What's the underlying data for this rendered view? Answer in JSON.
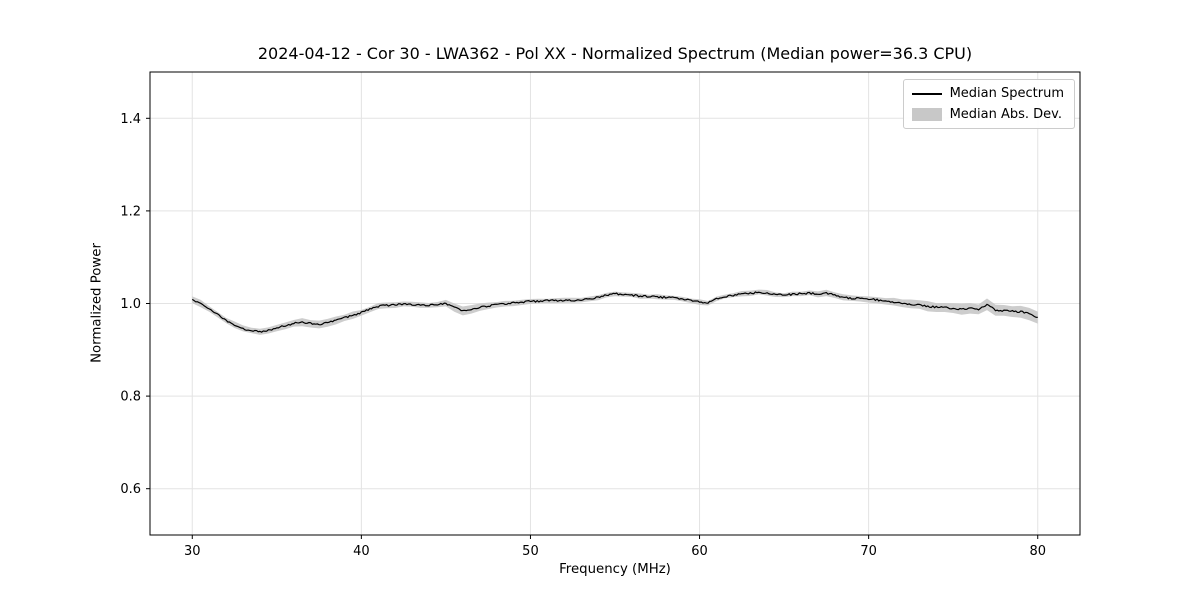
{
  "chart_data": {
    "type": "line",
    "title": "2024-04-12 - Cor 30 - LWA362 - Pol XX - Normalized Spectrum (Median power=36.3 CPU)",
    "xlabel": "Frequency (MHz)",
    "ylabel": "Normalized Power",
    "xlim": [
      27.5,
      82.5
    ],
    "ylim": [
      0.5,
      1.5
    ],
    "xticks": [
      30,
      40,
      50,
      60,
      70,
      80
    ],
    "yticks": [
      0.6,
      0.8,
      1.0,
      1.2,
      1.4
    ],
    "xtick_labels": [
      "30",
      "40",
      "50",
      "60",
      "70",
      "80"
    ],
    "ytick_labels": [
      "0.6",
      "0.8",
      "1.0",
      "1.2",
      "1.4"
    ],
    "grid": true,
    "noise_amplitude": 0.002,
    "colors": {
      "line": "#000000",
      "band": "#c8c8c8",
      "grid": "#e3e3e3",
      "frame": "#000000",
      "background": "#ffffff"
    },
    "legend": {
      "position": "upper right",
      "entries": [
        {
          "label": "Median Spectrum",
          "type": "line",
          "color": "#000000"
        },
        {
          "label": "Median Abs. Dev.",
          "type": "patch",
          "color": "#c8c8c8"
        }
      ]
    },
    "series": [
      {
        "name": "Median Spectrum",
        "x": [
          30,
          30.5,
          31,
          31.5,
          32,
          32.5,
          33,
          33.5,
          34,
          34.5,
          35,
          35.5,
          36,
          36.5,
          37,
          37.5,
          38,
          38.5,
          39,
          39.5,
          40,
          40.5,
          41,
          41.5,
          42,
          42.5,
          43,
          43.5,
          44,
          44.5,
          45,
          45.5,
          46,
          46.5,
          47,
          47.5,
          48,
          48.5,
          49,
          49.5,
          50,
          50.5,
          51,
          51.5,
          52,
          52.5,
          53,
          53.5,
          54,
          54.5,
          55,
          55.5,
          56,
          56.5,
          57,
          57.5,
          58,
          58.5,
          59,
          59.5,
          60,
          60.5,
          61,
          61.5,
          62,
          62.5,
          63,
          63.5,
          64,
          64.5,
          65,
          65.5,
          66,
          66.5,
          67,
          67.5,
          68,
          68.5,
          69,
          69.5,
          70,
          70.5,
          71,
          71.5,
          72,
          72.5,
          73,
          73.5,
          74,
          74.5,
          75,
          75.5,
          76,
          76.5,
          77,
          77.5,
          78,
          78.5,
          79,
          79.5,
          80
        ],
        "y": [
          1.008,
          1.0,
          0.988,
          0.976,
          0.964,
          0.954,
          0.946,
          0.941,
          0.939,
          0.942,
          0.947,
          0.952,
          0.957,
          0.96,
          0.957,
          0.955,
          0.958,
          0.963,
          0.969,
          0.975,
          0.98,
          0.988,
          0.994,
          0.996,
          0.997,
          0.999,
          0.998,
          0.996,
          0.996,
          0.997,
          1.0,
          0.992,
          0.984,
          0.988,
          0.992,
          0.995,
          0.997,
          0.999,
          1.001,
          1.003,
          1.005,
          1.005,
          1.006,
          1.006,
          1.007,
          1.007,
          1.008,
          1.01,
          1.013,
          1.018,
          1.021,
          1.02,
          1.018,
          1.016,
          1.015,
          1.014,
          1.013,
          1.012,
          1.01,
          1.006,
          1.003,
          1.001,
          1.01,
          1.015,
          1.018,
          1.021,
          1.022,
          1.024,
          1.023,
          1.02,
          1.018,
          1.02,
          1.021,
          1.022,
          1.02,
          1.023,
          1.018,
          1.013,
          1.011,
          1.011,
          1.009,
          1.008,
          1.005,
          1.003,
          1.001,
          0.999,
          0.997,
          0.994,
          0.992,
          0.991,
          0.99,
          0.988,
          0.99,
          0.987,
          0.998,
          0.985,
          0.985,
          0.983,
          0.982,
          0.978,
          0.97
        ],
        "mad": [
          0.007,
          0.007,
          0.006,
          0.006,
          0.006,
          0.006,
          0.006,
          0.006,
          0.006,
          0.007,
          0.008,
          0.008,
          0.008,
          0.008,
          0.008,
          0.008,
          0.008,
          0.008,
          0.007,
          0.007,
          0.007,
          0.006,
          0.006,
          0.006,
          0.006,
          0.006,
          0.006,
          0.006,
          0.006,
          0.006,
          0.007,
          0.009,
          0.01,
          0.009,
          0.008,
          0.007,
          0.006,
          0.006,
          0.006,
          0.006,
          0.005,
          0.005,
          0.005,
          0.005,
          0.005,
          0.005,
          0.005,
          0.005,
          0.005,
          0.005,
          0.005,
          0.005,
          0.005,
          0.005,
          0.005,
          0.005,
          0.005,
          0.005,
          0.005,
          0.005,
          0.005,
          0.005,
          0.005,
          0.005,
          0.005,
          0.005,
          0.005,
          0.005,
          0.005,
          0.005,
          0.005,
          0.005,
          0.005,
          0.005,
          0.006,
          0.006,
          0.006,
          0.006,
          0.006,
          0.006,
          0.007,
          0.007,
          0.007,
          0.008,
          0.008,
          0.009,
          0.009,
          0.01,
          0.01,
          0.01,
          0.011,
          0.011,
          0.011,
          0.011,
          0.012,
          0.012,
          0.012,
          0.012,
          0.013,
          0.013,
          0.013
        ]
      }
    ]
  }
}
